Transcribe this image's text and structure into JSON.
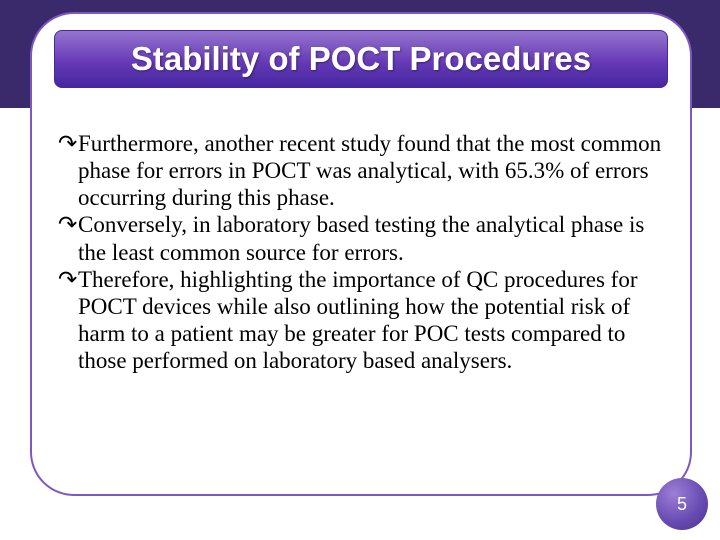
{
  "colors": {
    "outer_bg": "#3b2a6b",
    "border": "#7e57c2",
    "banner_top": "#9575cd",
    "banner_mid": "#673ab7",
    "banner_bottom": "#4527a0",
    "text": "#000000",
    "page_circle_light": "#9c7fd6",
    "page_circle_dark": "#4a2f8f"
  },
  "title": "Stability of POCT Procedures",
  "bullets": [
    "Furthermore, another recent study found that the most common phase for errors in POCT was analytical, with 65.3% of errors occurring during this phase.",
    "Conversely, in laboratory based testing the analytical phase is the least common source for errors.",
    "Therefore, highlighting the importance of QC procedures for POCT devices while also outlining how the potential risk of harm to a patient may be greater for POC tests compared to those performed on laboratory based analysers."
  ],
  "bullet_glyph": "↷",
  "page_number": "5",
  "typography": {
    "title_fontsize": 33,
    "title_fontweight": "bold",
    "body_fontsize": 23,
    "body_fontfamily": "Times New Roman"
  }
}
